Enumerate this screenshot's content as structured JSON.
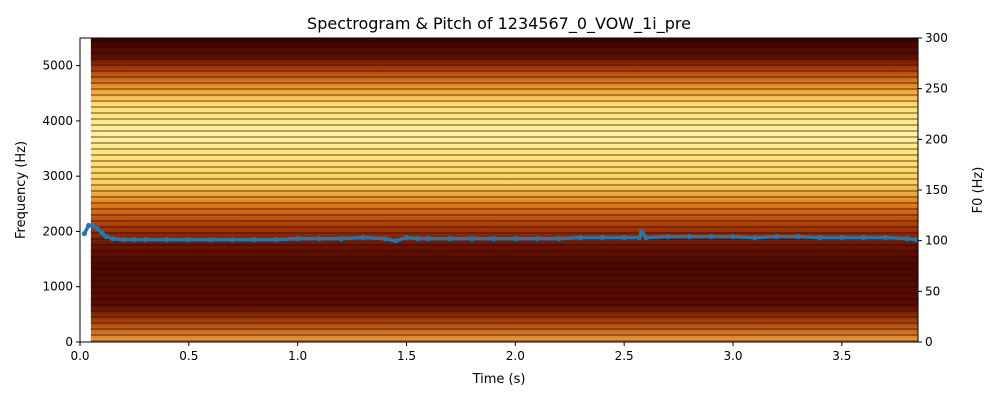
{
  "chart_data": {
    "type": "heatmap",
    "title": "Spectrogram & Pitch of 1234567_0_VOW_1i_pre",
    "xlabel": "Time (s)",
    "ylabel_left": "Frequency (Hz)",
    "ylabel_right": "F0 (Hz)",
    "xlim": [
      0,
      3.85
    ],
    "ylim_left": [
      0,
      5500
    ],
    "ylim_right": [
      0,
      300
    ],
    "x_ticks": [
      "0.0",
      "0.5",
      "1.0",
      "1.5",
      "2.0",
      "2.5",
      "3.0",
      "3.5"
    ],
    "x_tick_values": [
      0,
      0.5,
      1.0,
      1.5,
      2.0,
      2.5,
      3.0,
      3.5
    ],
    "y_ticks_left": [
      "0",
      "1000",
      "2000",
      "3000",
      "4000",
      "5000"
    ],
    "y_tick_values_left": [
      0,
      1000,
      2000,
      3000,
      4000,
      5000
    ],
    "y_ticks_right": [
      "0",
      "50",
      "100",
      "150",
      "200",
      "250",
      "300"
    ],
    "y_tick_values_right": [
      0,
      50,
      100,
      150,
      200,
      250,
      300
    ],
    "grid": false,
    "colormap": "afmhot",
    "spectrogram": {
      "time_range": [
        0.05,
        3.85
      ],
      "harmonic_spacing_hz": 102,
      "bright_bands_hz": [
        {
          "low": 2400,
          "high": 4600,
          "level": 0.85
        },
        {
          "low": 0,
          "high": 350,
          "level": 0.7
        }
      ]
    },
    "pitch_series": {
      "color": "#1f77b4",
      "points": [
        [
          0.02,
          107
        ],
        [
          0.04,
          115
        ],
        [
          0.06,
          115
        ],
        [
          0.08,
          112
        ],
        [
          0.1,
          108
        ],
        [
          0.12,
          104
        ],
        [
          0.15,
          102
        ],
        [
          0.2,
          101
        ],
        [
          0.25,
          101
        ],
        [
          0.3,
          101
        ],
        [
          0.4,
          101
        ],
        [
          0.5,
          101
        ],
        [
          0.6,
          101
        ],
        [
          0.7,
          101
        ],
        [
          0.8,
          101
        ],
        [
          0.9,
          101
        ],
        [
          1.0,
          102
        ],
        [
          1.1,
          102
        ],
        [
          1.2,
          102
        ],
        [
          1.3,
          103
        ],
        [
          1.4,
          102
        ],
        [
          1.45,
          100
        ],
        [
          1.5,
          103
        ],
        [
          1.55,
          102
        ],
        [
          1.6,
          102
        ],
        [
          1.7,
          102
        ],
        [
          1.8,
          102
        ],
        [
          1.9,
          102
        ],
        [
          2.0,
          102
        ],
        [
          2.1,
          102
        ],
        [
          2.2,
          102
        ],
        [
          2.3,
          103
        ],
        [
          2.4,
          103
        ],
        [
          2.5,
          103
        ],
        [
          2.57,
          103
        ],
        [
          2.58,
          109
        ],
        [
          2.6,
          103
        ],
        [
          2.7,
          104
        ],
        [
          2.8,
          104
        ],
        [
          2.9,
          104
        ],
        [
          3.0,
          104
        ],
        [
          3.1,
          103
        ],
        [
          3.2,
          104
        ],
        [
          3.3,
          104
        ],
        [
          3.4,
          103
        ],
        [
          3.5,
          103
        ],
        [
          3.6,
          103
        ],
        [
          3.7,
          103
        ],
        [
          3.8,
          102
        ],
        [
          3.84,
          101
        ]
      ]
    }
  }
}
